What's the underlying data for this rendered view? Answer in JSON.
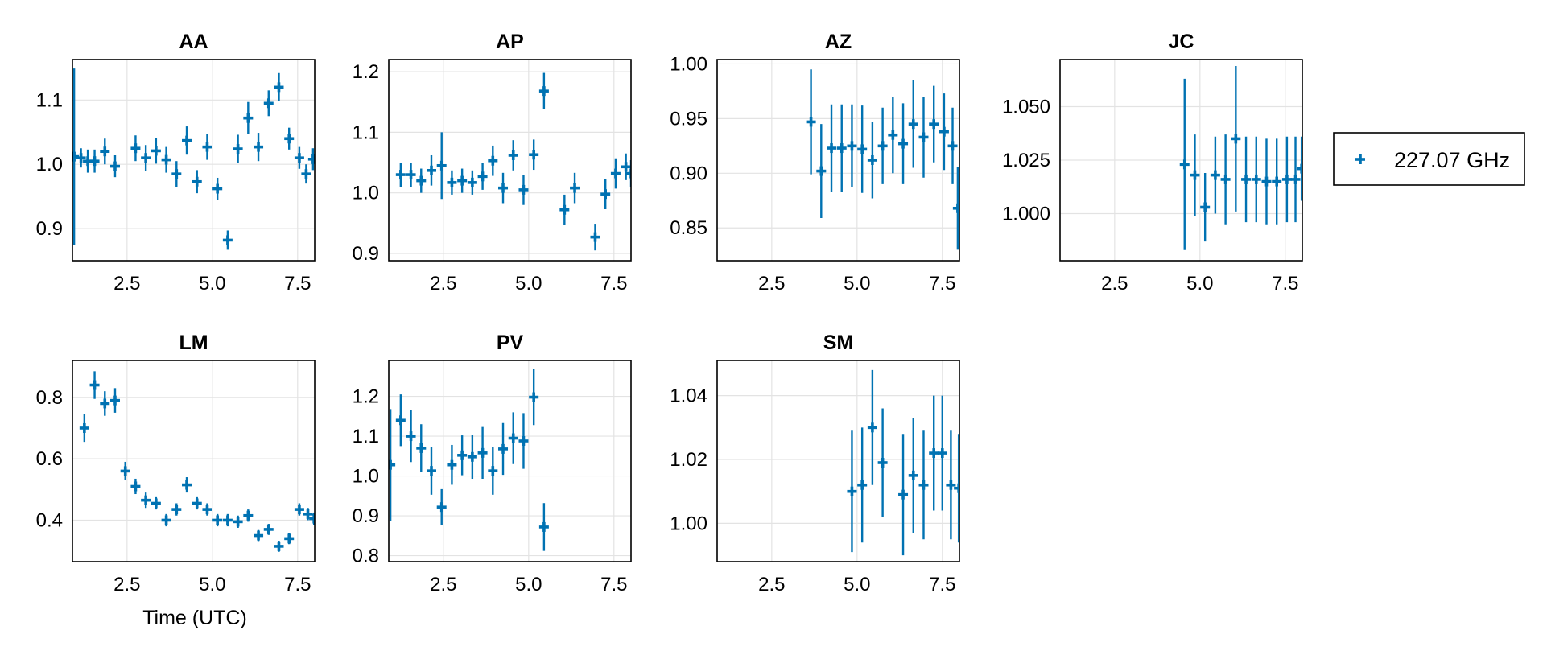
{
  "chart_data": {
    "type": "scatter",
    "legend": {
      "label": "227.07 GHz",
      "position": "right",
      "color": "#0072b2",
      "marker": "cross"
    },
    "xlabel": "Time (UTC)",
    "grid": true,
    "panels": [
      {
        "title": "AA",
        "xlim": [
          0.9,
          8.0
        ],
        "ylim": [
          0.85,
          1.163
        ],
        "xticks": [
          "2.5",
          "5.0",
          "7.5"
        ],
        "xtick_values": [
          2.5,
          5.0,
          7.5
        ],
        "yticks": [
          "0.9",
          "1.0",
          "1.1"
        ],
        "ytick_values": [
          0.9,
          1.0,
          1.1
        ],
        "points": [
          {
            "x": 0.95,
            "y": 1.012,
            "err": 0.137
          },
          {
            "x": 1.15,
            "y": 1.01,
            "err": 0.015
          },
          {
            "x": 1.35,
            "y": 1.005,
            "err": 0.018
          },
          {
            "x": 1.55,
            "y": 1.005,
            "err": 0.018
          },
          {
            "x": 1.85,
            "y": 1.02,
            "err": 0.02
          },
          {
            "x": 2.15,
            "y": 0.997,
            "err": 0.017
          },
          {
            "x": 2.75,
            "y": 1.025,
            "err": 0.02
          },
          {
            "x": 3.05,
            "y": 1.01,
            "err": 0.02
          },
          {
            "x": 3.35,
            "y": 1.021,
            "err": 0.02
          },
          {
            "x": 3.65,
            "y": 1.007,
            "err": 0.02
          },
          {
            "x": 3.95,
            "y": 0.985,
            "err": 0.02
          },
          {
            "x": 4.25,
            "y": 1.037,
            "err": 0.022
          },
          {
            "x": 4.55,
            "y": 0.973,
            "err": 0.018
          },
          {
            "x": 4.85,
            "y": 1.027,
            "err": 0.02
          },
          {
            "x": 5.15,
            "y": 0.962,
            "err": 0.017
          },
          {
            "x": 5.45,
            "y": 0.882,
            "err": 0.015
          },
          {
            "x": 5.75,
            "y": 1.024,
            "err": 0.022
          },
          {
            "x": 6.05,
            "y": 1.072,
            "err": 0.025
          },
          {
            "x": 6.35,
            "y": 1.027,
            "err": 0.022
          },
          {
            "x": 6.65,
            "y": 1.095,
            "err": 0.02
          },
          {
            "x": 6.95,
            "y": 1.12,
            "err": 0.022
          },
          {
            "x": 7.25,
            "y": 1.04,
            "err": 0.017
          },
          {
            "x": 7.55,
            "y": 1.01,
            "err": 0.017
          },
          {
            "x": 7.75,
            "y": 0.985,
            "err": 0.015
          },
          {
            "x": 7.95,
            "y": 1.008,
            "err": 0.017
          }
        ]
      },
      {
        "title": "AP",
        "xlim": [
          0.9,
          8.0
        ],
        "ylim": [
          0.888,
          1.22
        ],
        "xticks": [
          "2.5",
          "5.0",
          "7.5"
        ],
        "xtick_values": [
          2.5,
          5.0,
          7.5
        ],
        "yticks": [
          "0.9",
          "1.0",
          "1.1",
          "1.2"
        ],
        "ytick_values": [
          0.9,
          1.0,
          1.1,
          1.2
        ],
        "points": [
          {
            "x": 1.25,
            "y": 1.03,
            "err": 0.02
          },
          {
            "x": 1.55,
            "y": 1.03,
            "err": 0.02
          },
          {
            "x": 1.85,
            "y": 1.02,
            "err": 0.02
          },
          {
            "x": 2.15,
            "y": 1.037,
            "err": 0.025
          },
          {
            "x": 2.45,
            "y": 1.045,
            "err": 0.055
          },
          {
            "x": 2.75,
            "y": 1.017,
            "err": 0.02
          },
          {
            "x": 3.05,
            "y": 1.02,
            "err": 0.02
          },
          {
            "x": 3.35,
            "y": 1.017,
            "err": 0.02
          },
          {
            "x": 3.65,
            "y": 1.027,
            "err": 0.022
          },
          {
            "x": 3.95,
            "y": 1.053,
            "err": 0.025
          },
          {
            "x": 4.25,
            "y": 1.008,
            "err": 0.025
          },
          {
            "x": 4.55,
            "y": 1.062,
            "err": 0.025
          },
          {
            "x": 4.85,
            "y": 1.005,
            "err": 0.025
          },
          {
            "x": 5.15,
            "y": 1.063,
            "err": 0.025
          },
          {
            "x": 5.45,
            "y": 1.168,
            "err": 0.03
          },
          {
            "x": 6.05,
            "y": 0.972,
            "err": 0.025
          },
          {
            "x": 6.35,
            "y": 1.008,
            "err": 0.025
          },
          {
            "x": 6.95,
            "y": 0.927,
            "err": 0.022
          },
          {
            "x": 7.25,
            "y": 0.998,
            "err": 0.025
          },
          {
            "x": 7.55,
            "y": 1.032,
            "err": 0.025
          },
          {
            "x": 7.85,
            "y": 1.043,
            "err": 0.022
          },
          {
            "x": 8.0,
            "y": 1.032,
            "err": 0.022
          }
        ]
      },
      {
        "title": "AZ",
        "xlim": [
          0.9,
          8.0
        ],
        "ylim": [
          0.82,
          1.004
        ],
        "xticks": [
          "2.5",
          "5.0",
          "7.5"
        ],
        "xtick_values": [
          2.5,
          5.0,
          7.5
        ],
        "yticks": [
          "0.85",
          "0.90",
          "0.95",
          "1.00"
        ],
        "ytick_values": [
          0.85,
          0.9,
          0.95,
          1.0
        ],
        "points": [
          {
            "x": 3.65,
            "y": 0.947,
            "err": 0.048
          },
          {
            "x": 3.95,
            "y": 0.902,
            "err": 0.043
          },
          {
            "x": 4.25,
            "y": 0.923,
            "err": 0.04
          },
          {
            "x": 4.55,
            "y": 0.923,
            "err": 0.04
          },
          {
            "x": 4.85,
            "y": 0.925,
            "err": 0.038
          },
          {
            "x": 5.15,
            "y": 0.922,
            "err": 0.04
          },
          {
            "x": 5.45,
            "y": 0.912,
            "err": 0.035
          },
          {
            "x": 5.75,
            "y": 0.925,
            "err": 0.035
          },
          {
            "x": 6.05,
            "y": 0.935,
            "err": 0.035
          },
          {
            "x": 6.35,
            "y": 0.927,
            "err": 0.037
          },
          {
            "x": 6.65,
            "y": 0.945,
            "err": 0.04
          },
          {
            "x": 6.95,
            "y": 0.933,
            "err": 0.037
          },
          {
            "x": 7.25,
            "y": 0.945,
            "err": 0.035
          },
          {
            "x": 7.55,
            "y": 0.938,
            "err": 0.035
          },
          {
            "x": 7.8,
            "y": 0.925,
            "err": 0.035
          },
          {
            "x": 7.95,
            "y": 0.868,
            "err": 0.038
          }
        ]
      },
      {
        "title": "JC",
        "xlim": [
          0.9,
          8.0
        ],
        "ylim": [
          0.978,
          1.072
        ],
        "xticks": [
          "2.5",
          "5.0",
          "7.5"
        ],
        "xtick_values": [
          2.5,
          5.0,
          7.5
        ],
        "yticks": [
          "1.000",
          "1.025",
          "1.050"
        ],
        "ytick_values": [
          1.0,
          1.025,
          1.05
        ],
        "points": [
          {
            "x": 4.55,
            "y": 1.023,
            "err": 0.04
          },
          {
            "x": 4.85,
            "y": 1.018,
            "err": 0.019
          },
          {
            "x": 5.15,
            "y": 1.003,
            "err": 0.016
          },
          {
            "x": 5.45,
            "y": 1.018,
            "err": 0.018
          },
          {
            "x": 5.75,
            "y": 1.016,
            "err": 0.021
          },
          {
            "x": 6.05,
            "y": 1.035,
            "err": 0.034
          },
          {
            "x": 6.35,
            "y": 1.016,
            "err": 0.02
          },
          {
            "x": 6.65,
            "y": 1.016,
            "err": 0.02
          },
          {
            "x": 6.95,
            "y": 1.015,
            "err": 0.02
          },
          {
            "x": 7.25,
            "y": 1.015,
            "err": 0.02
          },
          {
            "x": 7.55,
            "y": 1.016,
            "err": 0.02
          },
          {
            "x": 7.8,
            "y": 1.016,
            "err": 0.02
          },
          {
            "x": 7.98,
            "y": 1.021,
            "err": 0.015
          }
        ]
      },
      {
        "title": "LM",
        "xlim": [
          0.9,
          8.0
        ],
        "ylim": [
          0.265,
          0.92
        ],
        "xticks": [
          "2.5",
          "5.0",
          "7.5"
        ],
        "xtick_values": [
          2.5,
          5.0,
          7.5
        ],
        "yticks": [
          "0.4",
          "0.6",
          "0.8"
        ],
        "ytick_values": [
          0.4,
          0.6,
          0.8
        ],
        "points": [
          {
            "x": 1.25,
            "y": 0.7,
            "err": 0.045
          },
          {
            "x": 1.55,
            "y": 0.84,
            "err": 0.045
          },
          {
            "x": 1.85,
            "y": 0.78,
            "err": 0.04
          },
          {
            "x": 2.15,
            "y": 0.79,
            "err": 0.04
          },
          {
            "x": 2.45,
            "y": 0.56,
            "err": 0.03
          },
          {
            "x": 2.75,
            "y": 0.51,
            "err": 0.025
          },
          {
            "x": 3.05,
            "y": 0.465,
            "err": 0.025
          },
          {
            "x": 3.35,
            "y": 0.455,
            "err": 0.02
          },
          {
            "x": 3.65,
            "y": 0.4,
            "err": 0.02
          },
          {
            "x": 3.95,
            "y": 0.435,
            "err": 0.02
          },
          {
            "x": 4.25,
            "y": 0.515,
            "err": 0.025
          },
          {
            "x": 4.55,
            "y": 0.455,
            "err": 0.02
          },
          {
            "x": 4.85,
            "y": 0.435,
            "err": 0.02
          },
          {
            "x": 5.15,
            "y": 0.4,
            "err": 0.02
          },
          {
            "x": 5.45,
            "y": 0.4,
            "err": 0.02
          },
          {
            "x": 5.75,
            "y": 0.395,
            "err": 0.02
          },
          {
            "x": 6.05,
            "y": 0.415,
            "err": 0.02
          },
          {
            "x": 6.35,
            "y": 0.35,
            "err": 0.018
          },
          {
            "x": 6.65,
            "y": 0.37,
            "err": 0.018
          },
          {
            "x": 6.95,
            "y": 0.315,
            "err": 0.018
          },
          {
            "x": 7.25,
            "y": 0.34,
            "err": 0.018
          },
          {
            "x": 7.55,
            "y": 0.435,
            "err": 0.02
          },
          {
            "x": 7.8,
            "y": 0.42,
            "err": 0.02
          },
          {
            "x": 7.98,
            "y": 0.405,
            "err": 0.02
          }
        ]
      },
      {
        "title": "PV",
        "xlim": [
          0.9,
          8.0
        ],
        "ylim": [
          0.785,
          1.29
        ],
        "xticks": [
          "2.5",
          "5.0",
          "7.5"
        ],
        "xtick_values": [
          2.5,
          5.0,
          7.5
        ],
        "yticks": [
          "0.8",
          "0.9",
          "1.0",
          "1.1",
          "1.2"
        ],
        "ytick_values": [
          0.8,
          0.9,
          1.0,
          1.1,
          1.2
        ],
        "points": [
          {
            "x": 0.95,
            "y": 1.028,
            "err": 0.14
          },
          {
            "x": 1.25,
            "y": 1.14,
            "err": 0.065
          },
          {
            "x": 1.55,
            "y": 1.1,
            "err": 0.065
          },
          {
            "x": 1.85,
            "y": 1.07,
            "err": 0.06
          },
          {
            "x": 2.15,
            "y": 1.013,
            "err": 0.06
          },
          {
            "x": 2.45,
            "y": 0.922,
            "err": 0.045
          },
          {
            "x": 2.75,
            "y": 1.028,
            "err": 0.05
          },
          {
            "x": 3.05,
            "y": 1.052,
            "err": 0.05
          },
          {
            "x": 3.35,
            "y": 1.048,
            "err": 0.055
          },
          {
            "x": 3.65,
            "y": 1.058,
            "err": 0.065
          },
          {
            "x": 3.95,
            "y": 1.013,
            "err": 0.06
          },
          {
            "x": 4.25,
            "y": 1.068,
            "err": 0.065
          },
          {
            "x": 4.55,
            "y": 1.095,
            "err": 0.065
          },
          {
            "x": 4.85,
            "y": 1.088,
            "err": 0.07
          },
          {
            "x": 5.15,
            "y": 1.198,
            "err": 0.07
          },
          {
            "x": 5.45,
            "y": 0.872,
            "err": 0.06
          }
        ]
      },
      {
        "title": "SM",
        "xlim": [
          0.9,
          8.0
        ],
        "ylim": [
          0.988,
          1.051
        ],
        "xticks": [
          "2.5",
          "5.0",
          "7.5"
        ],
        "xtick_values": [
          2.5,
          5.0,
          7.5
        ],
        "yticks": [
          "1.00",
          "1.02",
          "1.04"
        ],
        "ytick_values": [
          1.0,
          1.02,
          1.04
        ],
        "points": [
          {
            "x": 4.85,
            "y": 1.01,
            "err": 0.019
          },
          {
            "x": 5.15,
            "y": 1.012,
            "err": 0.018
          },
          {
            "x": 5.45,
            "y": 1.03,
            "err": 0.018
          },
          {
            "x": 5.75,
            "y": 1.019,
            "err": 0.017
          },
          {
            "x": 6.35,
            "y": 1.009,
            "err": 0.019
          },
          {
            "x": 6.65,
            "y": 1.015,
            "err": 0.018
          },
          {
            "x": 6.95,
            "y": 1.012,
            "err": 0.017
          },
          {
            "x": 7.25,
            "y": 1.022,
            "err": 0.018
          },
          {
            "x": 7.5,
            "y": 1.022,
            "err": 0.018
          },
          {
            "x": 7.75,
            "y": 1.012,
            "err": 0.017
          },
          {
            "x": 7.98,
            "y": 1.011,
            "err": 0.017
          }
        ]
      }
    ]
  }
}
